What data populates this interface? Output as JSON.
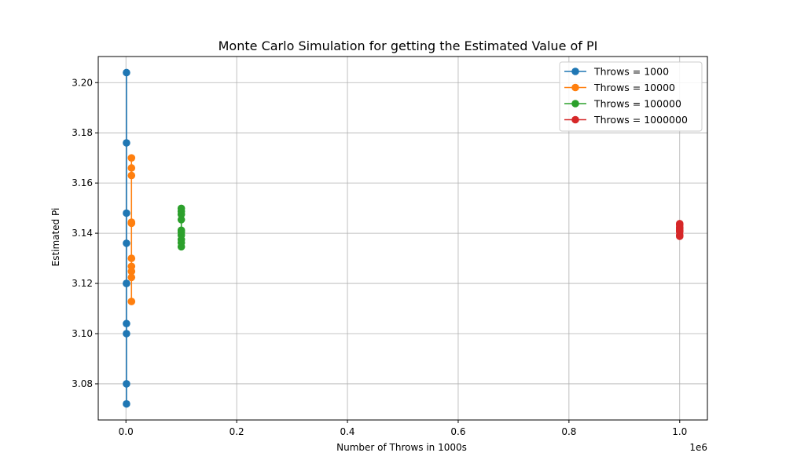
{
  "chart_data": {
    "type": "line",
    "title": "Monte Carlo Simulation for getting the Estimated Value of PI",
    "xlabel": "Number of Throws in 1000s",
    "ylabel": "Estimated Pi",
    "x_offset_label": "1e6",
    "xlim": [
      -0.05,
      1.05
    ],
    "ylim": [
      3.0656,
      3.2104
    ],
    "x_ticks": [
      0.0,
      0.2,
      0.4,
      0.6,
      0.8,
      1.0
    ],
    "x_tick_labels": [
      "0.0",
      "0.2",
      "0.4",
      "0.6",
      "0.8",
      "1.0"
    ],
    "y_ticks": [
      3.08,
      3.1,
      3.12,
      3.14,
      3.16,
      3.18,
      3.2
    ],
    "y_tick_labels": [
      "3.08",
      "3.10",
      "3.12",
      "3.14",
      "3.16",
      "3.18",
      "3.20"
    ],
    "grid": true,
    "legend_position": "top-right",
    "series": [
      {
        "name": "Throws = 1000",
        "color": "#1f77b4",
        "x": [
          0.001,
          0.001,
          0.001,
          0.001,
          0.001,
          0.001,
          0.001,
          0.001,
          0.001,
          0.001
        ],
        "values": [
          3.204,
          3.176,
          3.148,
          3.136,
          3.12,
          3.104,
          3.1,
          3.08,
          3.072,
          3.12
        ]
      },
      {
        "name": "Throws = 10000",
        "color": "#ff7f0e",
        "x": [
          0.01,
          0.01,
          0.01,
          0.01,
          0.01,
          0.01,
          0.01,
          0.01,
          0.01,
          0.01,
          0.01
        ],
        "values": [
          3.17,
          3.166,
          3.163,
          3.1444,
          3.144,
          3.13,
          3.1268,
          3.1248,
          3.1224,
          3.1128,
          3.144
        ]
      },
      {
        "name": "Throws = 100000",
        "color": "#2ca02c",
        "x": [
          0.1,
          0.1,
          0.1,
          0.1,
          0.1,
          0.1,
          0.1,
          0.1,
          0.1,
          0.1
        ],
        "values": [
          3.1499,
          3.1487,
          3.1475,
          3.1454,
          3.1412,
          3.1404,
          3.1392,
          3.1375,
          3.1362,
          3.1346
        ]
      },
      {
        "name": "Throws = 1000000",
        "color": "#d62728",
        "x": [
          1.0,
          1.0,
          1.0,
          1.0,
          1.0,
          1.0,
          1.0,
          1.0
        ],
        "values": [
          3.1438,
          3.1433,
          3.1424,
          3.1418,
          3.1412,
          3.1406,
          3.1393,
          3.1388
        ]
      }
    ]
  }
}
